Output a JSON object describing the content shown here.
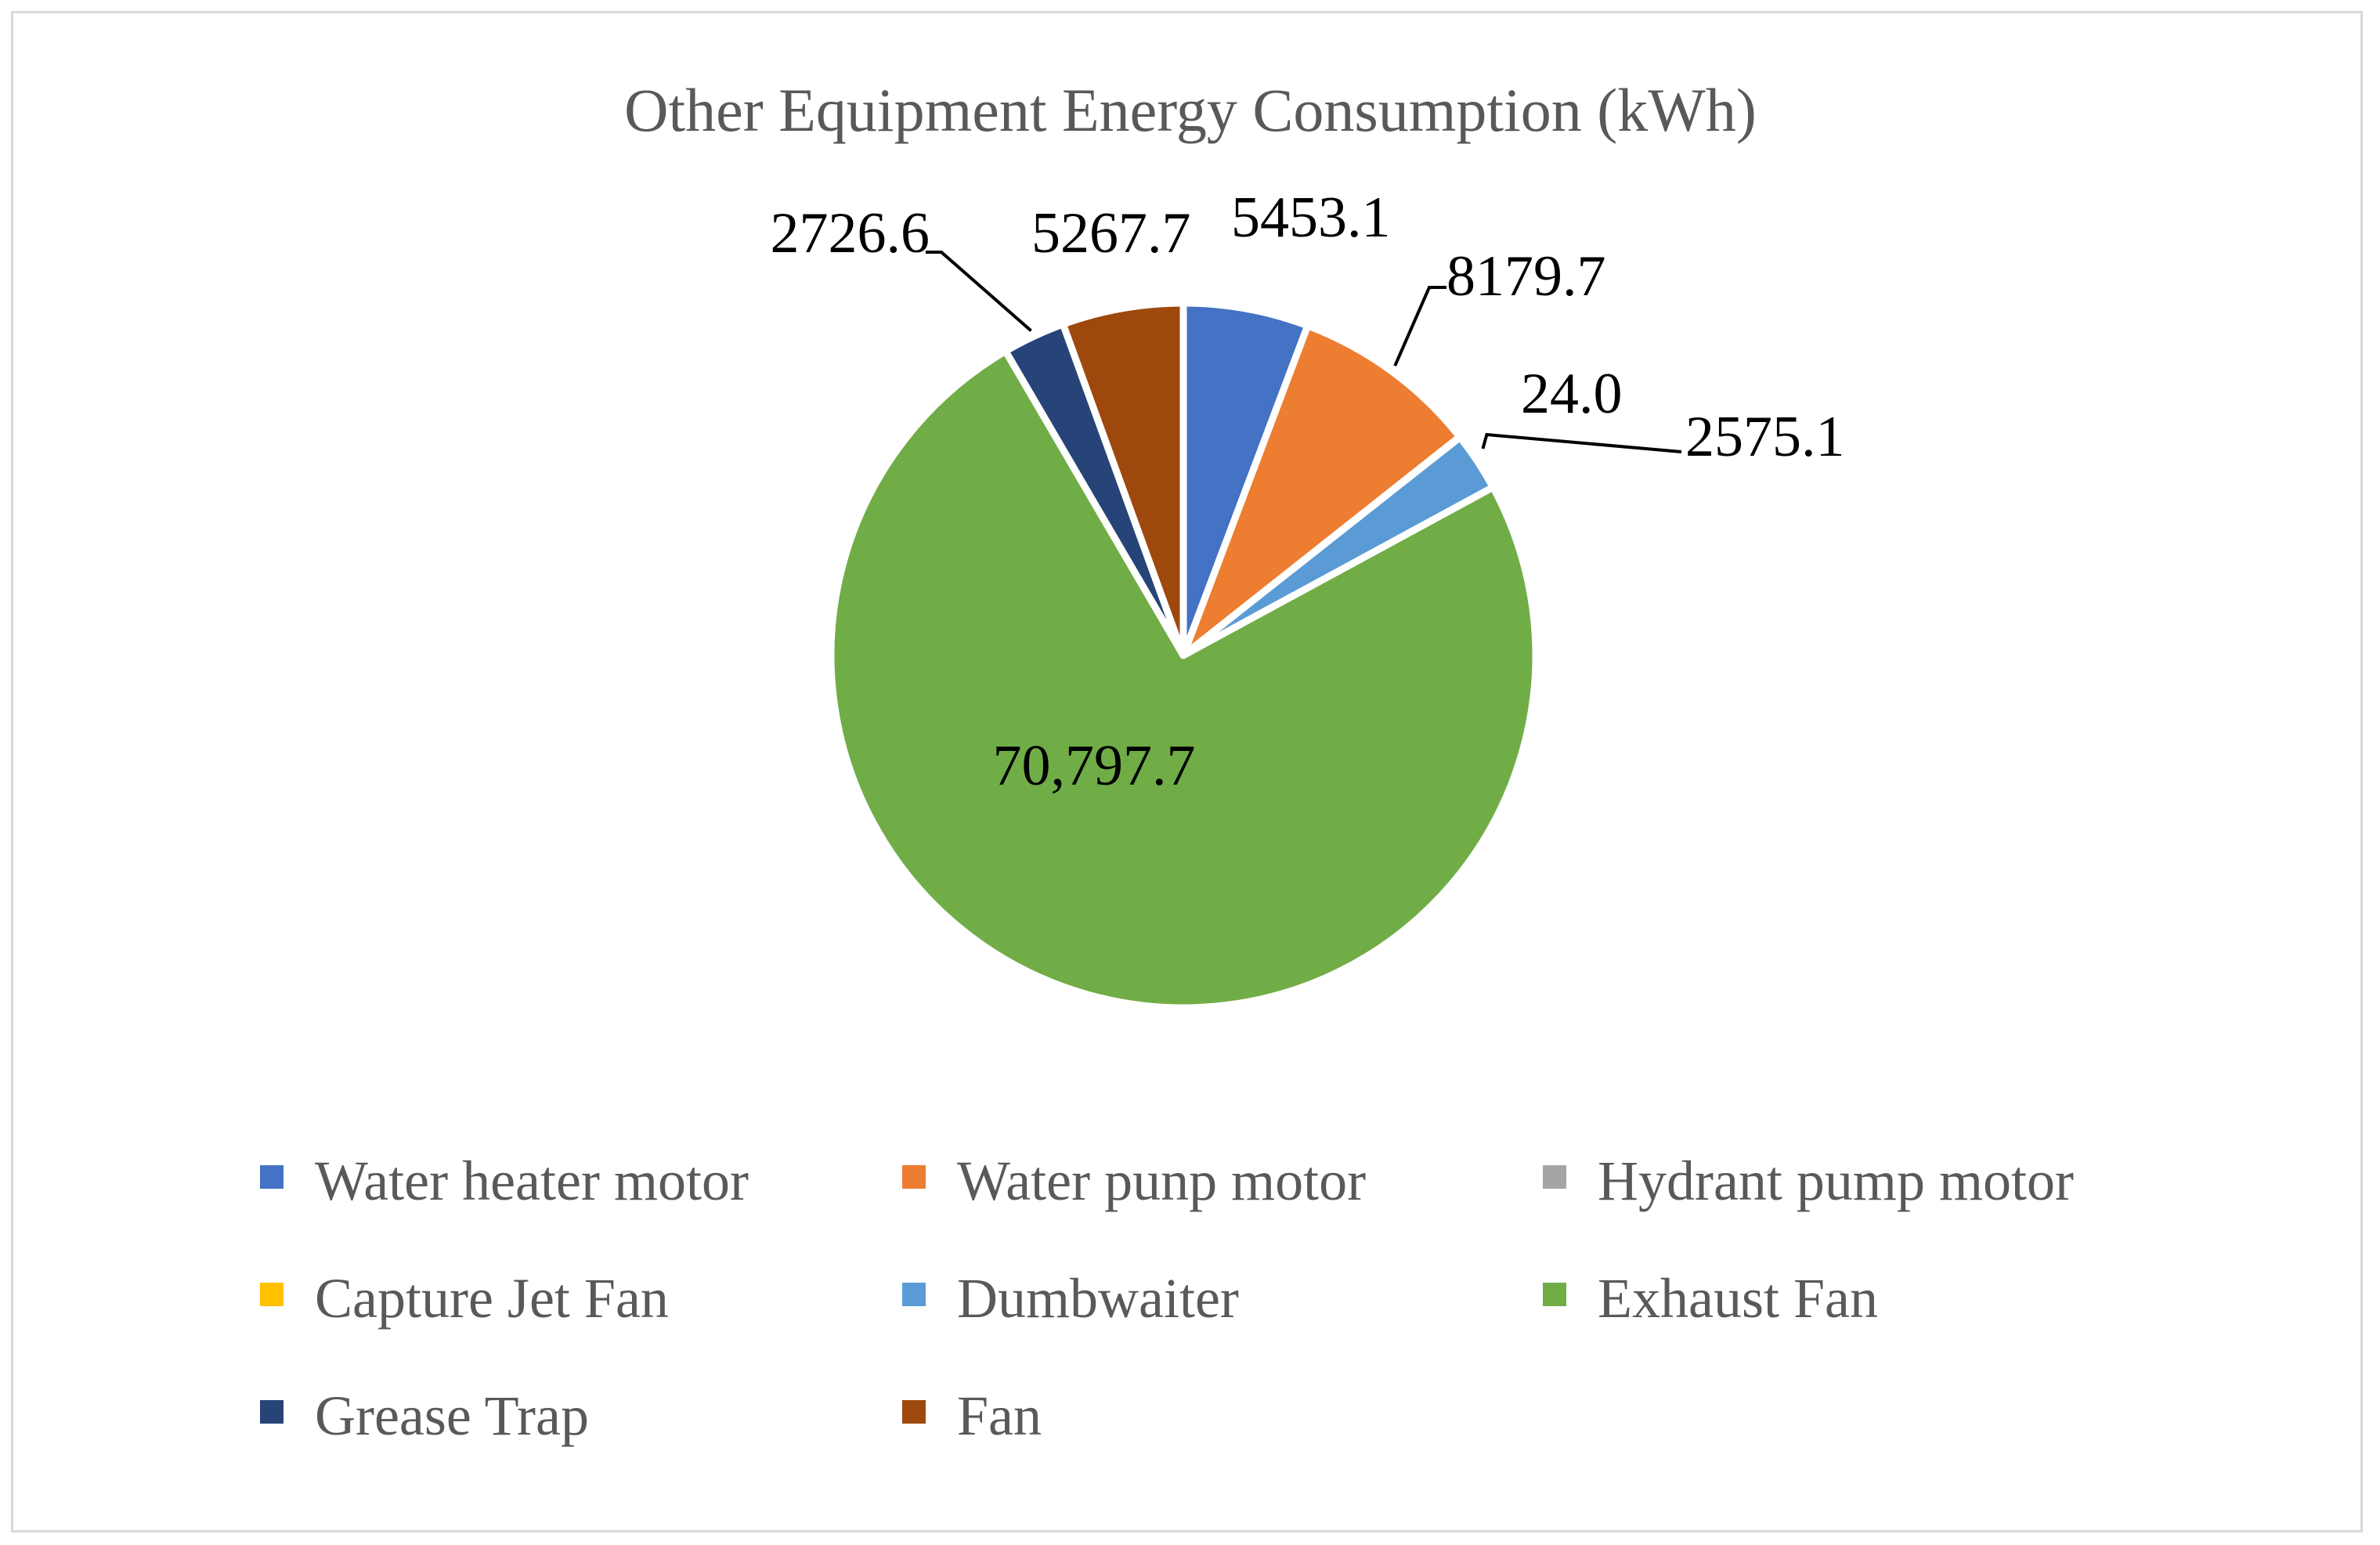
{
  "chart_data": {
    "type": "pie",
    "title": "Other Equipment Energy Consumption (kWh)",
    "unit": "kWh",
    "start_angle_deg": 0,
    "direction": "clockwise",
    "legend_position": "bottom",
    "slices": [
      {
        "name": "Water heater motor",
        "value": 5453.1,
        "label": "5453.1",
        "color": "#4472c4"
      },
      {
        "name": "Water punp motor",
        "value": 8179.7,
        "label": "8179.7",
        "color": "#ed7d31"
      },
      {
        "name": "Hydrant pump motor",
        "value": 24.0,
        "label": "24.0",
        "color": "#a5a5a5"
      },
      {
        "name": "Capture Jet Fan",
        "value": 0,
        "label": "",
        "color": "#ffc000"
      },
      {
        "name": "Dumbwaiter",
        "value": 2575.1,
        "label": "2575.1",
        "color": "#5b9bd5"
      },
      {
        "name": "Exhaust Fan",
        "value": 70797.7,
        "label": "70,797.7",
        "color": "#70ad47"
      },
      {
        "name": "Grease Trap",
        "value": 2726.6,
        "label": "2726.6",
        "color": "#264478"
      },
      {
        "name": "Fan",
        "value": 5267.7,
        "label": "5267.7",
        "color": "#9e480e"
      }
    ]
  }
}
